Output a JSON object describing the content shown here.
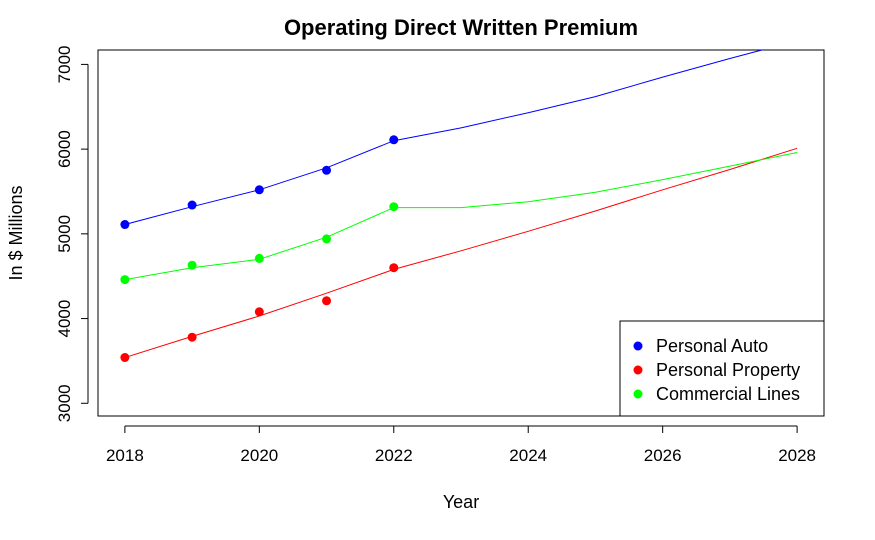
{
  "chart_data": {
    "type": "line",
    "title": "Operating Direct Written Premium",
    "xlabel": "Year",
    "ylabel": "In $ Millions",
    "xlim": [
      2017.6,
      2028.4
    ],
    "ylim": [
      2850,
      7170
    ],
    "x_ticks": [
      2018,
      2020,
      2022,
      2024,
      2026,
      2028
    ],
    "y_ticks": [
      3000,
      4000,
      5000,
      6000,
      7000
    ],
    "grid": false,
    "legend_position": "bottom-right",
    "series": [
      {
        "name": "Personal Auto",
        "color": "#0000ff",
        "points": [
          {
            "x": 2018,
            "y": 5110
          },
          {
            "x": 2019,
            "y": 5340
          },
          {
            "x": 2020,
            "y": 5520
          },
          {
            "x": 2021,
            "y": 5750
          },
          {
            "x": 2022,
            "y": 6110
          }
        ],
        "trend": [
          {
            "x": 2018,
            "y": 5110
          },
          {
            "x": 2019,
            "y": 5320
          },
          {
            "x": 2020,
            "y": 5520
          },
          {
            "x": 2021,
            "y": 5780
          },
          {
            "x": 2022,
            "y": 6100
          },
          {
            "x": 2023,
            "y": 6250
          },
          {
            "x": 2024,
            "y": 6430
          },
          {
            "x": 2025,
            "y": 6620
          },
          {
            "x": 2026,
            "y": 6850
          },
          {
            "x": 2027,
            "y": 7070
          },
          {
            "x": 2027.9,
            "y": 7260
          }
        ]
      },
      {
        "name": "Personal Property",
        "color": "#ff0000",
        "points": [
          {
            "x": 2018,
            "y": 3540
          },
          {
            "x": 2019,
            "y": 3780
          },
          {
            "x": 2020,
            "y": 4080
          },
          {
            "x": 2021,
            "y": 4210
          },
          {
            "x": 2022,
            "y": 4600
          }
        ],
        "trend": [
          {
            "x": 2018,
            "y": 3540
          },
          {
            "x": 2019,
            "y": 3790
          },
          {
            "x": 2020,
            "y": 4030
          },
          {
            "x": 2021,
            "y": 4300
          },
          {
            "x": 2022,
            "y": 4580
          },
          {
            "x": 2023,
            "y": 4800
          },
          {
            "x": 2024,
            "y": 5030
          },
          {
            "x": 2025,
            "y": 5270
          },
          {
            "x": 2026,
            "y": 5520
          },
          {
            "x": 2027,
            "y": 5760
          },
          {
            "x": 2028,
            "y": 6010
          }
        ]
      },
      {
        "name": "Commercial Lines",
        "color": "#00ff00",
        "points": [
          {
            "x": 2018,
            "y": 4460
          },
          {
            "x": 2019,
            "y": 4630
          },
          {
            "x": 2020,
            "y": 4710
          },
          {
            "x": 2021,
            "y": 4940
          },
          {
            "x": 2022,
            "y": 5320
          }
        ],
        "trend": [
          {
            "x": 2018,
            "y": 4460
          },
          {
            "x": 2019,
            "y": 4600
          },
          {
            "x": 2020,
            "y": 4700
          },
          {
            "x": 2021,
            "y": 4960
          },
          {
            "x": 2022,
            "y": 5310
          },
          {
            "x": 2023,
            "y": 5310
          },
          {
            "x": 2024,
            "y": 5380
          },
          {
            "x": 2025,
            "y": 5490
          },
          {
            "x": 2026,
            "y": 5640
          },
          {
            "x": 2027,
            "y": 5800
          },
          {
            "x": 2028,
            "y": 5960
          }
        ]
      }
    ]
  }
}
